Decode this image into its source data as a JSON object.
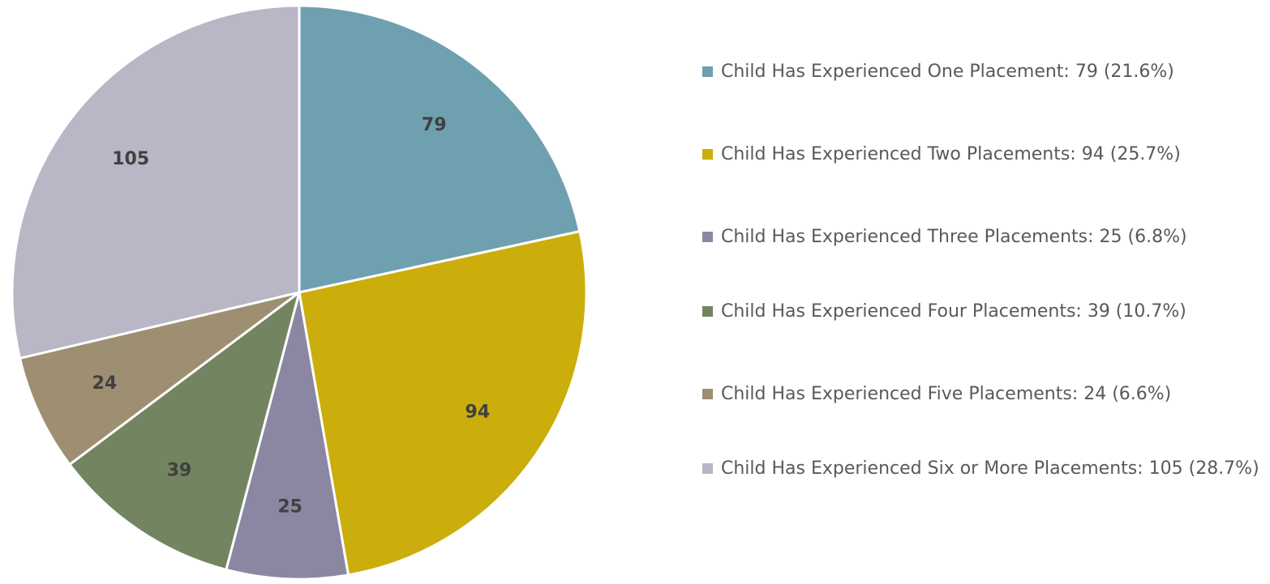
{
  "chart_data": {
    "type": "pie",
    "title": "",
    "categories": [
      "Child Has Experienced One Placement",
      "Child Has Experienced Two Placements",
      "Child Has Experienced Three Placements",
      "Child Has Experienced Four Placements",
      "Child Has Experienced Five Placements",
      "Child Has Experienced Six or More Placements"
    ],
    "values": [
      79,
      94,
      25,
      39,
      24,
      105
    ],
    "percent_labels": [
      "21.6%",
      "25.7%",
      "6.8%",
      "10.7%",
      "6.6%",
      "28.7%"
    ],
    "colors": [
      "#6fa0b0",
      "#cbae0b",
      "#8b87a3",
      "#738560",
      "#9e8f72",
      "#b9b6c6"
    ],
    "data_labels": [
      "79",
      "94",
      "25",
      "39",
      "24",
      "105"
    ],
    "legend_position": "right",
    "start_angle": "12 o'clock",
    "direction": "clockwise"
  },
  "legend": {
    "items": [
      "Child Has Experienced One Placement:  79 (21.6%)",
      "Child Has Experienced Two Placements:  94 (25.7%)",
      "Child Has Experienced Three Placements:  25 (6.8%)",
      "Child Has Experienced Four Placements:  39 (10.7%)",
      "Child Has Experienced Five Placements:  24 (6.6%)",
      "Child Has Experienced Six or More Placements:  105 (28.7%)"
    ]
  }
}
